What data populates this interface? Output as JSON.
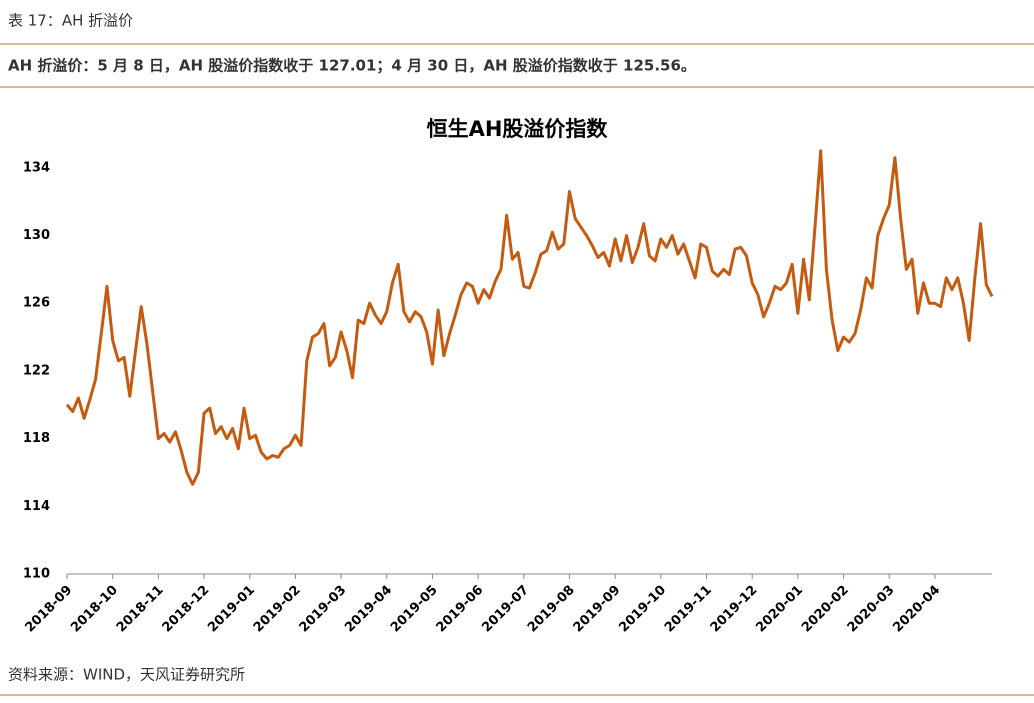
{
  "header": {
    "title": "表 17：AH 折溢价",
    "summary": "AH 折溢价：5 月 8 日，AH 股溢价指数收于 127.01；4 月 30 日，AH 股溢价指数收于 125.56。"
  },
  "source": "资料来源：WIND，天风证券研究所",
  "chart_data": {
    "type": "line",
    "title": "恒生AH股溢价指数",
    "categories": [
      "2018-09",
      null,
      null,
      null,
      null,
      null,
      null,
      null,
      "2018-10",
      null,
      null,
      null,
      null,
      null,
      null,
      null,
      "2018-11",
      null,
      null,
      null,
      null,
      null,
      null,
      null,
      "2018-12",
      null,
      null,
      null,
      null,
      null,
      null,
      null,
      "2019-01",
      null,
      null,
      null,
      null,
      null,
      null,
      null,
      "2019-02",
      null,
      null,
      null,
      null,
      null,
      null,
      null,
      "2019-03",
      null,
      null,
      null,
      null,
      null,
      null,
      null,
      "2019-04",
      null,
      null,
      null,
      null,
      null,
      null,
      null,
      "2019-05",
      null,
      null,
      null,
      null,
      null,
      null,
      null,
      "2019-06",
      null,
      null,
      null,
      null,
      null,
      null,
      null,
      "2019-07",
      null,
      null,
      null,
      null,
      null,
      null,
      null,
      "2019-08",
      null,
      null,
      null,
      null,
      null,
      null,
      null,
      "2019-09",
      null,
      null,
      null,
      null,
      null,
      null,
      null,
      "2019-10",
      null,
      null,
      null,
      null,
      null,
      null,
      null,
      "2019-11",
      null,
      null,
      null,
      null,
      null,
      null,
      null,
      "2019-12",
      null,
      null,
      null,
      null,
      null,
      null,
      null,
      "2020-01",
      null,
      null,
      null,
      null,
      null,
      null,
      null,
      "2020-02",
      null,
      null,
      null,
      null,
      null,
      null,
      null,
      "2020-03",
      null,
      null,
      null,
      null,
      null,
      null,
      null,
      "2020-04",
      null,
      null,
      null,
      null,
      null,
      null,
      null,
      null,
      null,
      null
    ],
    "series": [
      {
        "name": "恒生AH股溢价指数",
        "color": "#c55a11",
        "values": [
          120,
          119.6,
          120.4,
          119.2,
          120.3,
          121.5,
          124.2,
          127.0,
          123.8,
          122.6,
          122.8,
          120.5,
          123.2,
          125.8,
          123.6,
          120.8,
          118,
          118.3,
          117.8,
          118.4,
          117.3,
          116,
          115.3,
          116,
          119.5,
          119.8,
          118.3,
          118.7,
          118,
          118.6,
          117.4,
          119.8,
          118,
          118.2,
          117.2,
          116.8,
          117,
          116.9,
          117.4,
          117.6,
          118.2,
          117.6,
          122.6,
          124,
          124.2,
          124.8,
          122.3,
          122.8,
          124.3,
          123.2,
          121.6,
          125,
          124.8,
          126,
          125.3,
          124.8,
          125.5,
          127.2,
          128.3,
          125.5,
          124.9,
          125.5,
          125.2,
          124.3,
          122.4,
          125.6,
          122.9,
          124.2,
          125.3,
          126.5,
          127.2,
          127.0,
          126,
          126.8,
          126.3,
          127.3,
          128,
          131.2,
          128.6,
          129,
          127,
          126.9,
          127.8,
          128.9,
          129.1,
          130.2,
          129.2,
          129.5,
          132.6,
          131,
          130.5,
          130,
          129.4,
          128.7,
          129,
          128.2,
          129.8,
          128.5,
          130,
          128.4,
          129.3,
          130.7,
          128.8,
          128.5,
          129.8,
          129.3,
          130,
          128.9,
          129.5,
          128.5,
          127.5,
          129.5,
          129.3,
          127.9,
          127.6,
          128,
          127.7,
          129.2,
          129.3,
          128.8,
          127.2,
          126.5,
          125.2,
          126,
          127,
          126.8,
          127.2,
          128.3,
          125.4,
          128.6,
          126.2,
          130.5,
          135,
          128,
          125,
          123.2,
          124,
          123.7,
          124.2,
          125.6,
          127.5,
          126.9,
          130,
          131,
          131.8,
          134.6,
          131,
          128,
          128.6,
          125.4,
          127.2,
          126,
          126,
          125.8,
          127.5,
          126.8,
          127.5,
          126,
          123.8,
          127.5,
          130.7,
          127.1,
          126.4
        ]
      }
    ],
    "ylim": [
      110,
      136
    ],
    "yticks": [
      110,
      114,
      118,
      122,
      126,
      130,
      134
    ],
    "grid": false
  }
}
